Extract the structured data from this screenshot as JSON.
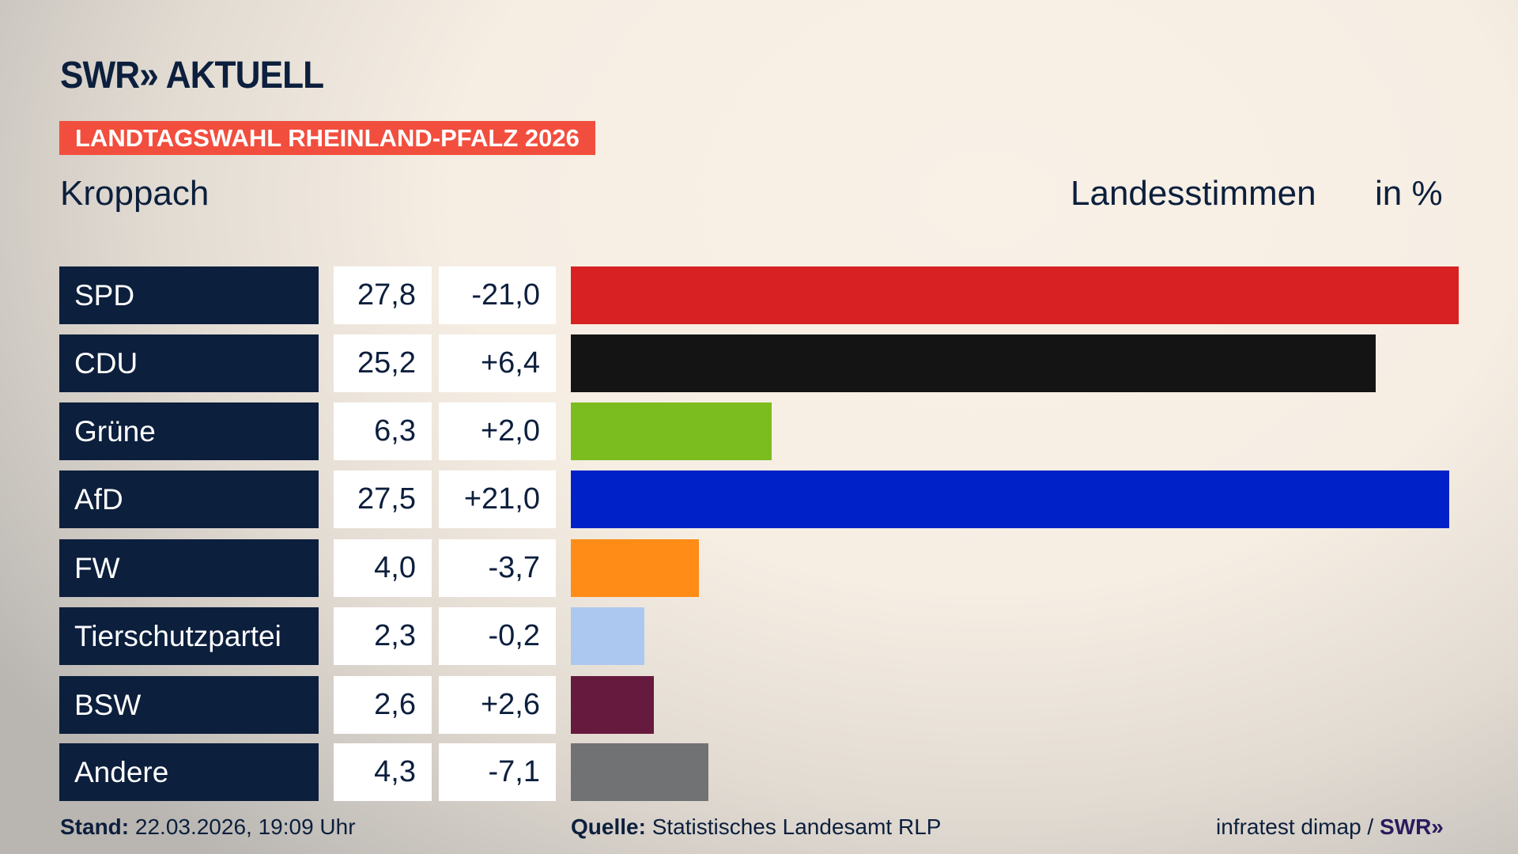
{
  "header": {
    "logo": "SWR» AKTUELL",
    "banner": "LANDTAGSWAHL RHEINLAND-PFALZ 2026",
    "place": "Kroppach",
    "metric": "Landesstimmen",
    "unit": "in %"
  },
  "colors": {
    "navy": "#0c1f3d",
    "banner": "#f24e3e"
  },
  "chart_data": {
    "type": "bar",
    "orientation": "horizontal",
    "categories": [
      "SPD",
      "CDU",
      "Grüne",
      "AfD",
      "FW",
      "Tierschutzpartei",
      "BSW",
      "Andere"
    ],
    "values": [
      27.8,
      25.2,
      6.3,
      27.5,
      4.0,
      2.3,
      2.6,
      4.3
    ],
    "value_labels": [
      "27,8",
      "25,2",
      "6,3",
      "27,5",
      "4,0",
      "2,3",
      "2,6",
      "4,3"
    ],
    "diff_labels": [
      "-21,0",
      "+6,4",
      "+2,0",
      "+21,0",
      "-3,7",
      "-0,2",
      "+2,6",
      "-7,1"
    ],
    "colors": [
      "#d72123",
      "#141414",
      "#7bbd1e",
      "#0021c8",
      "#ff8c17",
      "#adc8f0",
      "#661a3e",
      "#717273"
    ],
    "ylabel": "Landesstimmen",
    "unit": "in %"
  },
  "footer": {
    "stand_label": "Stand:",
    "stand_value": "22.03.2026, 19:09 Uhr",
    "source_label": "Quelle:",
    "source_value": "Statistisches Landesamt RLP",
    "credit": "infratest dimap /",
    "credit_logo": "SWR»"
  }
}
